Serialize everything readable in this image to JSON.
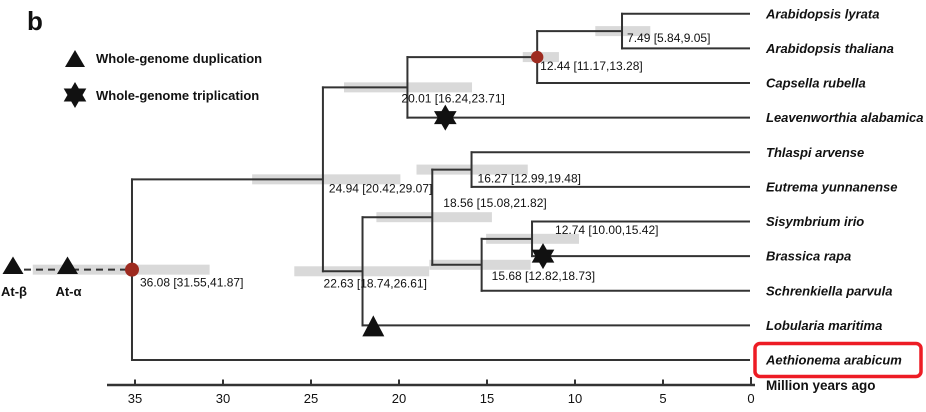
{
  "panel_label": "b",
  "legend": {
    "items": [
      {
        "icon": "wgd-triangle-icon",
        "label": "Whole-genome duplication"
      },
      {
        "icon": "wgt-star-icon",
        "label": "Whole-genome triplication"
      }
    ]
  },
  "chart_data": {
    "type": "phylogenetic_tree_with_time_axis",
    "time_axis": {
      "title": "Million years ago",
      "ticks": [
        35,
        30,
        25,
        20,
        15,
        10,
        5,
        0
      ],
      "min": 0,
      "max": 35
    },
    "tips": [
      "Arabidopsis lyrata",
      "Arabidopsis thaliana",
      "Capsella rubella",
      "Leavenworthia alabamica",
      "Thlaspi arvense",
      "Eutrema yunnanense",
      "Sisymbrium irio",
      "Brassica rapa",
      "Schrenkiella parvula",
      "Lobularia maritima",
      "Aethionema arabicum"
    ],
    "highlighted_tip": "Aethionema arabicum",
    "tree": {
      "age": 36.08,
      "ci": [
        31.55,
        41.87
      ],
      "label": "36.08 [31.55,41.87]",
      "red_dot": true,
      "children": [
        {
          "age": 24.94,
          "ci": [
            20.42,
            29.07
          ],
          "label": "24.94 [20.42,29.07]",
          "children": [
            {
              "age": 20.01,
              "ci": [
                16.24,
                23.71
              ],
              "label": "20.01 [16.24,23.71]",
              "children": [
                {
                  "age": 12.44,
                  "ci": [
                    11.17,
                    13.28
                  ],
                  "label": "12.44 [11.17,13.28]",
                  "red_dot": true,
                  "children": [
                    {
                      "age": 7.49,
                      "ci": [
                        5.84,
                        9.05
                      ],
                      "label": "7.49 [5.84,9.05]",
                      "children": [
                        {
                          "name": "Arabidopsis lyrata"
                        },
                        {
                          "name": "Arabidopsis thaliana"
                        }
                      ]
                    },
                    {
                      "name": "Capsella rubella"
                    }
                  ]
                },
                {
                  "name": "Leavenworthia alabamica"
                }
              ]
            },
            {
              "age": 22.63,
              "ci": [
                18.74,
                26.61
              ],
              "label": "22.63 [18.74,26.61]",
              "children": [
                {
                  "age": 18.56,
                  "ci": [
                    15.08,
                    21.82
                  ],
                  "label": "18.56 [15.08,21.82]",
                  "children": [
                    {
                      "age": 16.27,
                      "ci": [
                        12.99,
                        19.48
                      ],
                      "label": "16.27 [12.99,19.48]",
                      "children": [
                        {
                          "name": "Thlaspi arvense"
                        },
                        {
                          "name": "Eutrema yunnanense"
                        }
                      ]
                    },
                    {
                      "age": 15.68,
                      "ci": [
                        12.82,
                        18.73
                      ],
                      "label": "15.68 [12.82,18.73]",
                      "children": [
                        {
                          "age": 12.74,
                          "ci": [
                            10.0,
                            15.42
                          ],
                          "label": "12.74 [10.00,15.42]",
                          "children": [
                            {
                              "name": "Sisymbrium irio"
                            },
                            {
                              "name": "Brassica rapa"
                            }
                          ]
                        },
                        {
                          "name": "Schrenkiella parvula"
                        }
                      ]
                    }
                  ]
                },
                {
                  "name": "Lobularia maritima"
                }
              ]
            }
          ]
        },
        {
          "name": "Aethionema arabicum"
        }
      ]
    },
    "wgd_events": [
      {
        "symbol": "triangle",
        "type": "whole-genome duplication",
        "label": "At-β",
        "lineage": "ancestral dashed branch left of root"
      },
      {
        "symbol": "triangle",
        "type": "whole-genome duplication",
        "label": "At-α",
        "lineage": "ancestral dashed branch left of root"
      },
      {
        "symbol": "star",
        "type": "whole-genome triplication",
        "branch": "Leavenworthia alabamica",
        "approx_age_ma": 17.8
      },
      {
        "symbol": "star",
        "type": "whole-genome triplication",
        "branch": "Brassica rapa",
        "approx_age_ma": 12.1
      },
      {
        "symbol": "triangle",
        "type": "whole-genome duplication",
        "branch": "Lobularia maritima",
        "approx_age_ma": 22.0
      }
    ],
    "calibration_dot_nodes": [
      "36.08 [31.55,41.87]",
      "12.44 [11.17,13.28]"
    ]
  },
  "colors": {
    "branch": "#333333",
    "ci_bar": "#d9d9d9",
    "calibration_dot": "#9e2b20",
    "marker": "#111111",
    "highlight_box": "#ed1c24",
    "text": "#111111"
  }
}
